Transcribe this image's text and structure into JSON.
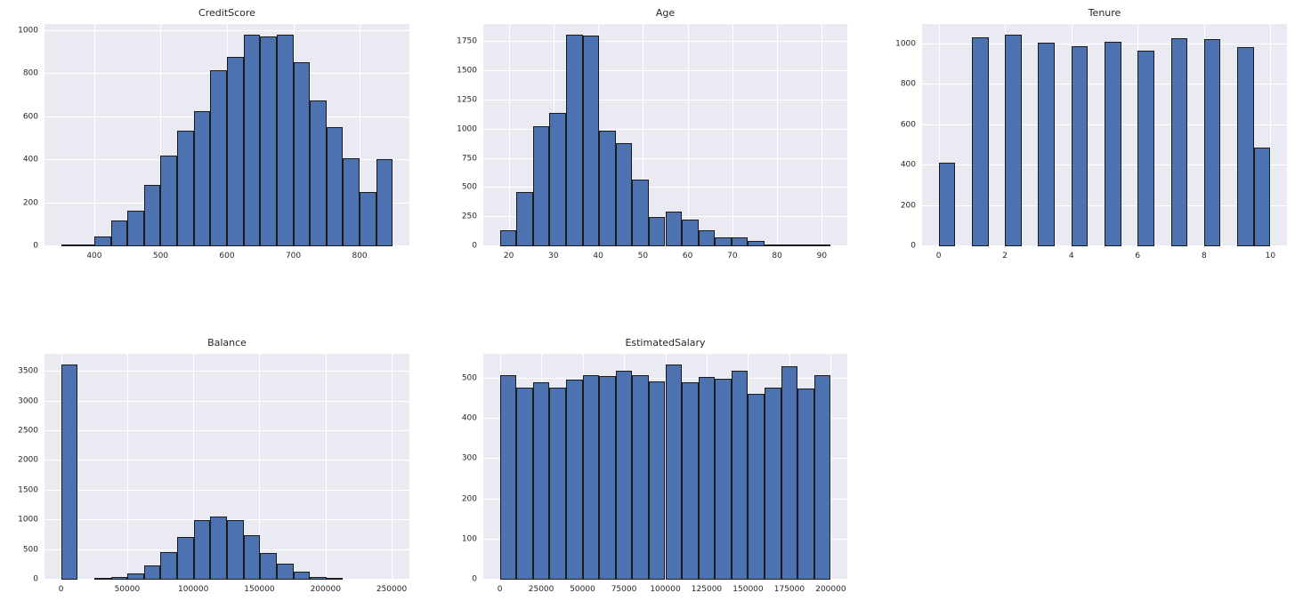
{
  "style": {
    "bar_fill": "#4C72B0",
    "bar_edge": "#1a1a1a",
    "axes_background": "#EAEAF2",
    "gridline": "#ffffff",
    "text_color": "#262626",
    "figure_background": "#ffffff"
  },
  "chart_data": [
    {
      "type": "bar",
      "kind": "histogram",
      "title": "CreditScore",
      "xlabel": "",
      "ylabel": "",
      "grid": true,
      "xlim": [
        325,
        875
      ],
      "ylim": [
        0,
        1031
      ],
      "xticks": [
        400,
        500,
        600,
        700,
        800
      ],
      "yticks": [
        0,
        200,
        400,
        600,
        800,
        1000
      ],
      "bin_edges": [
        350,
        375,
        400,
        425,
        450,
        475,
        500,
        525,
        550,
        575,
        600,
        625,
        650,
        675,
        700,
        725,
        750,
        775,
        800,
        825,
        850
      ],
      "values": [
        10,
        2,
        46,
        120,
        165,
        285,
        422,
        538,
        628,
        815,
        880,
        982,
        972,
        982,
        853,
        675,
        553,
        410,
        253,
        405
      ]
    },
    {
      "type": "bar",
      "kind": "histogram",
      "title": "Age",
      "xlabel": "",
      "ylabel": "",
      "grid": true,
      "xlim": [
        14.3,
        95.7
      ],
      "ylim": [
        0,
        1906
      ],
      "xticks": [
        20,
        30,
        40,
        50,
        60,
        70,
        80,
        90
      ],
      "yticks": [
        0,
        250,
        500,
        750,
        1000,
        1250,
        1500,
        1750
      ],
      "bin_edges": [
        18,
        21.7,
        25.4,
        29.1,
        32.8,
        36.5,
        40.2,
        43.9,
        47.6,
        51.3,
        55,
        58.7,
        62.4,
        66.1,
        69.8,
        73.5,
        77.2,
        80.9,
        84.6,
        88.3,
        92
      ],
      "values": [
        140,
        465,
        1030,
        1145,
        1815,
        1805,
        990,
        885,
        570,
        255,
        295,
        230,
        135,
        80,
        78,
        48,
        8,
        5,
        2,
        2
      ]
    },
    {
      "type": "bar",
      "kind": "histogram",
      "title": "Tenure",
      "xlabel": "",
      "ylabel": "",
      "grid": true,
      "xlim": [
        -0.5,
        10.5
      ],
      "ylim": [
        0,
        1100
      ],
      "xticks": [
        0,
        2,
        4,
        6,
        8,
        10
      ],
      "yticks": [
        0,
        200,
        400,
        600,
        800,
        1000
      ],
      "bin_edges": [
        0,
        0.5,
        1,
        1.5,
        2,
        2.5,
        3,
        3.5,
        4,
        4.5,
        5,
        5.5,
        6,
        6.5,
        7,
        7.5,
        8,
        8.5,
        9,
        9.5,
        10
      ],
      "values": [
        413,
        0,
        1035,
        0,
        1048,
        0,
        1009,
        0,
        989,
        0,
        1012,
        0,
        967,
        0,
        1028,
        0,
        1025,
        0,
        984,
        490
      ]
    },
    {
      "type": "bar",
      "kind": "histogram",
      "title": "Balance",
      "xlabel": "",
      "ylabel": "",
      "grid": true,
      "xlim": [
        -12545,
        263443
      ],
      "ylim": [
        0,
        3801
      ],
      "xticks": [
        0,
        50000,
        100000,
        150000,
        200000,
        250000
      ],
      "yticks": [
        0,
        500,
        1000,
        1500,
        2000,
        2500,
        3000,
        3500
      ],
      "bin_edges": [
        0,
        12545,
        25090,
        37635,
        50180,
        62725,
        75270,
        87815,
        100360,
        112905,
        125450,
        137995,
        150540,
        163085,
        175630,
        188175,
        200720,
        213265,
        225810,
        238355,
        250900
      ],
      "values": [
        3620,
        0,
        15,
        45,
        110,
        240,
        460,
        720,
        1000,
        1070,
        1000,
        755,
        445,
        265,
        130,
        40,
        25,
        0,
        0,
        0
      ]
    },
    {
      "type": "bar",
      "kind": "histogram",
      "title": "EstimatedSalary",
      "xlabel": "",
      "ylabel": "",
      "grid": true,
      "xlim": [
        -10000,
        210000
      ],
      "ylim": [
        0,
        562
      ],
      "xticks": [
        0,
        25000,
        50000,
        75000,
        100000,
        125000,
        150000,
        175000,
        200000
      ],
      "yticks": [
        0,
        100,
        200,
        300,
        400,
        500
      ],
      "bin_edges": [
        0,
        10000,
        20000,
        30000,
        40000,
        50000,
        60000,
        70000,
        80000,
        90000,
        100000,
        110000,
        120000,
        130000,
        140000,
        150000,
        160000,
        170000,
        180000,
        190000,
        200000
      ],
      "values": [
        508,
        477,
        491,
        477,
        497,
        508,
        506,
        520,
        508,
        493,
        535,
        491,
        504,
        501,
        519,
        462,
        477,
        531,
        475,
        508
      ]
    }
  ]
}
